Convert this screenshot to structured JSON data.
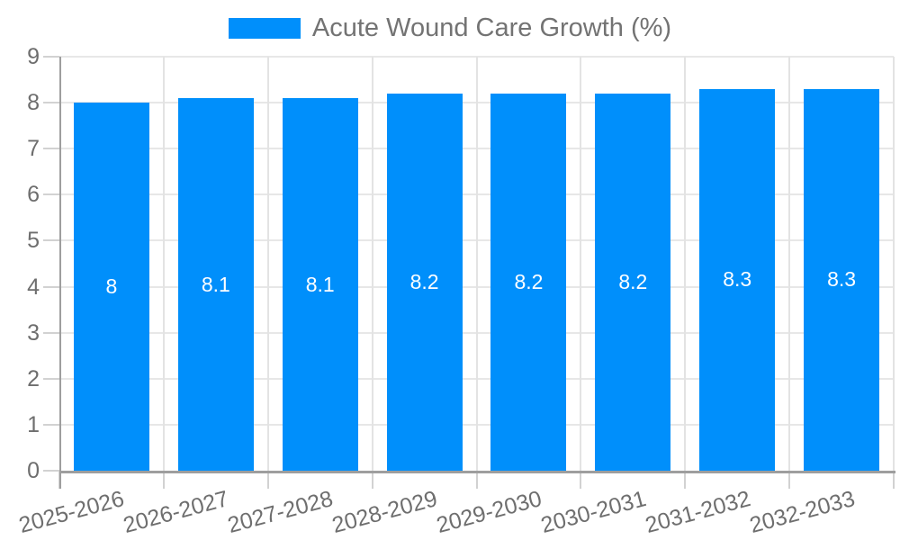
{
  "chart_data": {
    "type": "bar",
    "title": "Acute Wound Care Growth (%)",
    "categories": [
      "2025-2026",
      "2026-2027",
      "2027-2028",
      "2028-2029",
      "2029-2030",
      "2030-2031",
      "2031-2032",
      "2032-2033"
    ],
    "series": [
      {
        "name": "Acute Wound Care Growth (%)",
        "values": [
          8,
          8.1,
          8.1,
          8.2,
          8.2,
          8.2,
          8.3,
          8.3
        ]
      }
    ],
    "data_labels": [
      "8",
      "8.1",
      "8.1",
      "8.2",
      "8.2",
      "8.2",
      "8.3",
      "8.3"
    ],
    "xlabel": "",
    "ylabel": "",
    "ylim": [
      0,
      9
    ],
    "y_ticks": [
      0,
      1,
      2,
      3,
      4,
      5,
      6,
      7,
      8,
      9
    ],
    "grid": true,
    "legend_position": "top",
    "bar_color": "#008FFB"
  },
  "colors": {
    "bar": "#008FFB",
    "gridline": "#e7e7e7",
    "axis_line": "#9e9e9e",
    "axis_label_text": "#6e6e6e",
    "legend_text": "#737373",
    "data_label_text": "#ffffff"
  }
}
